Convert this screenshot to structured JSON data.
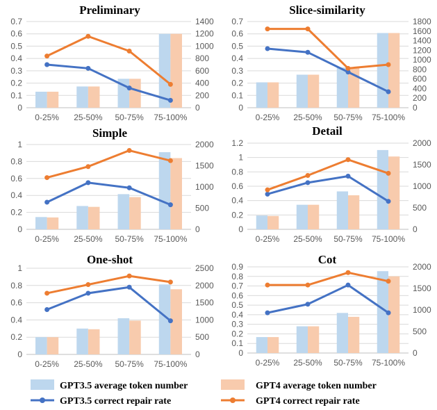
{
  "colors": {
    "gpt35_bar": "#bdd7ee",
    "gpt4_bar": "#f8cbad",
    "gpt35_line": "#4472c4",
    "gpt4_line": "#ed7d31",
    "grid": "#d9d9d9",
    "tick_text": "#595959"
  },
  "legend": {
    "gpt35_tokens": "GPT3.5 average token number",
    "gpt4_tokens": "GPT4 average token number",
    "gpt35_rate": "GPT3.5 correct repair rate",
    "gpt4_rate": "GPT4 correct repair rate"
  },
  "chart_data": [
    {
      "type": "bar+line",
      "title": "Preliminary",
      "categories": [
        "0-25%",
        "25-50%",
        "50-75%",
        "75-100%"
      ],
      "ylim_left": [
        0,
        0.7
      ],
      "yticks_left": [
        "0",
        "0.1",
        "0.2",
        "0.3",
        "0.4",
        "0.5",
        "0.6",
        "0.7"
      ],
      "ylim_right": [
        0,
        1400
      ],
      "yticks_right": [
        "0",
        "200",
        "400",
        "600",
        "800",
        "1000",
        "1200",
        "1400"
      ],
      "series": [
        {
          "name": "GPT3.5 average token number",
          "kind": "bar",
          "axis": "right",
          "values": [
            260,
            345,
            470,
            1200
          ]
        },
        {
          "name": "GPT4 average token number",
          "kind": "bar",
          "axis": "right",
          "values": [
            260,
            345,
            470,
            1200
          ]
        },
        {
          "name": "GPT3.5 correct repair rate",
          "kind": "line",
          "axis": "left",
          "values": [
            0.35,
            0.32,
            0.16,
            0.06
          ]
        },
        {
          "name": "GPT4 correct repair rate",
          "kind": "line",
          "axis": "left",
          "values": [
            0.42,
            0.58,
            0.46,
            0.19
          ]
        }
      ]
    },
    {
      "type": "bar+line",
      "title": "Slice-similarity",
      "categories": [
        "0-25%",
        "25-50%",
        "50-75%",
        "75-100%"
      ],
      "ylim_left": [
        0,
        0.7
      ],
      "yticks_left": [
        "0",
        "0.1",
        "0.2",
        "0.3",
        "0.4",
        "0.5",
        "0.6",
        "0.7"
      ],
      "ylim_right": [
        0,
        1800
      ],
      "yticks_right": [
        "0",
        "200",
        "400",
        "600",
        "800",
        "1000",
        "1200",
        "1400",
        "1600",
        "1800"
      ],
      "series": [
        {
          "name": "GPT3.5 average token number",
          "kind": "bar",
          "axis": "right",
          "values": [
            530,
            690,
            840,
            1560
          ]
        },
        {
          "name": "GPT4 average token number",
          "kind": "bar",
          "axis": "right",
          "values": [
            530,
            690,
            840,
            1560
          ]
        },
        {
          "name": "GPT3.5 correct repair rate",
          "kind": "line",
          "axis": "left",
          "values": [
            0.48,
            0.45,
            0.29,
            0.13
          ]
        },
        {
          "name": "GPT4 correct repair rate",
          "kind": "line",
          "axis": "left",
          "values": [
            0.64,
            0.64,
            0.32,
            0.35
          ]
        }
      ]
    },
    {
      "type": "bar+line",
      "title": "Simple",
      "categories": [
        "0-25%",
        "25-50%",
        "50-75%",
        "75-100%"
      ],
      "ylim_left": [
        0,
        1
      ],
      "yticks_left": [
        "0",
        "0.2",
        "0.4",
        "0.6",
        "0.8",
        "1"
      ],
      "ylim_right": [
        0,
        2000
      ],
      "yticks_right": [
        "0",
        "500",
        "1000",
        "1500",
        "2000"
      ],
      "series": [
        {
          "name": "GPT3.5 average token number",
          "kind": "bar",
          "axis": "right",
          "values": [
            290,
            550,
            830,
            1820
          ]
        },
        {
          "name": "GPT4 average token number",
          "kind": "bar",
          "axis": "right",
          "values": [
            280,
            530,
            760,
            1680
          ]
        },
        {
          "name": "GPT3.5 correct repair rate",
          "kind": "line",
          "axis": "left",
          "values": [
            0.32,
            0.55,
            0.49,
            0.29
          ]
        },
        {
          "name": "GPT4 correct repair rate",
          "kind": "line",
          "axis": "left",
          "values": [
            0.61,
            0.74,
            0.93,
            0.81
          ]
        }
      ]
    },
    {
      "type": "bar+line",
      "title": "Detail",
      "categories": [
        "0-25%",
        "25-50%",
        "50-75%",
        "75-100%"
      ],
      "ylim_left": [
        0,
        1.2
      ],
      "yticks_left": [
        "0",
        "0.2",
        "0.4",
        "0.6",
        "0.8",
        "1",
        "1.2"
      ],
      "ylim_right": [
        0,
        2000
      ],
      "yticks_right": [
        "0",
        "500",
        "1000",
        "1500",
        "2000"
      ],
      "series": [
        {
          "name": "GPT3.5 average token number",
          "kind": "bar",
          "axis": "right",
          "values": [
            320,
            570,
            880,
            1840
          ]
        },
        {
          "name": "GPT4 average token number",
          "kind": "bar",
          "axis": "right",
          "values": [
            310,
            570,
            790,
            1690
          ]
        },
        {
          "name": "GPT3.5 correct repair rate",
          "kind": "line",
          "axis": "left",
          "values": [
            0.49,
            0.65,
            0.74,
            0.39
          ]
        },
        {
          "name": "GPT4 correct repair rate",
          "kind": "line",
          "axis": "left",
          "values": [
            0.55,
            0.75,
            0.97,
            0.78
          ]
        }
      ]
    },
    {
      "type": "bar+line",
      "title": "One-shot",
      "categories": [
        "0-25%",
        "25-50%",
        "50-75%",
        "75-100%"
      ],
      "ylim_left": [
        0,
        1
      ],
      "yticks_left": [
        "0",
        "0.2",
        "0.4",
        "0.6",
        "0.8",
        "1"
      ],
      "ylim_right": [
        0,
        2500
      ],
      "yticks_right": [
        "0",
        "500",
        "1000",
        "1500",
        "2000",
        "2500"
      ],
      "series": [
        {
          "name": "GPT3.5 average token number",
          "kind": "bar",
          "axis": "right",
          "values": [
            500,
            750,
            1050,
            2030
          ]
        },
        {
          "name": "GPT4 average token number",
          "kind": "bar",
          "axis": "right",
          "values": [
            500,
            730,
            980,
            1890
          ]
        },
        {
          "name": "GPT3.5 correct repair rate",
          "kind": "line",
          "axis": "left",
          "values": [
            0.52,
            0.71,
            0.78,
            0.39
          ]
        },
        {
          "name": "GPT4 correct repair rate",
          "kind": "line",
          "axis": "left",
          "values": [
            0.71,
            0.81,
            0.91,
            0.84
          ]
        }
      ]
    },
    {
      "type": "bar+line",
      "title": "Cot",
      "categories": [
        "0-25%",
        "25-50%",
        "50-75%",
        "75-100%"
      ],
      "ylim_left": [
        0,
        0.9
      ],
      "yticks_left": [
        "0",
        "0.1",
        "0.2",
        "0.3",
        "0.4",
        "0.5",
        "0.6",
        "0.7",
        "0.8",
        "0.9"
      ],
      "ylim_right": [
        0,
        2000
      ],
      "yticks_right": [
        "0",
        "500",
        "1000",
        "1500",
        "2000"
      ],
      "series": [
        {
          "name": "GPT3.5 average token number",
          "kind": "bar",
          "axis": "right",
          "values": [
            370,
            620,
            930,
            1900
          ]
        },
        {
          "name": "GPT4 average token number",
          "kind": "bar",
          "axis": "right",
          "values": [
            370,
            620,
            840,
            1780
          ]
        },
        {
          "name": "GPT3.5 correct repair rate",
          "kind": "line",
          "axis": "left",
          "values": [
            0.42,
            0.51,
            0.71,
            0.42
          ]
        },
        {
          "name": "GPT4 correct repair rate",
          "kind": "line",
          "axis": "left",
          "values": [
            0.71,
            0.71,
            0.84,
            0.75
          ]
        }
      ]
    }
  ]
}
